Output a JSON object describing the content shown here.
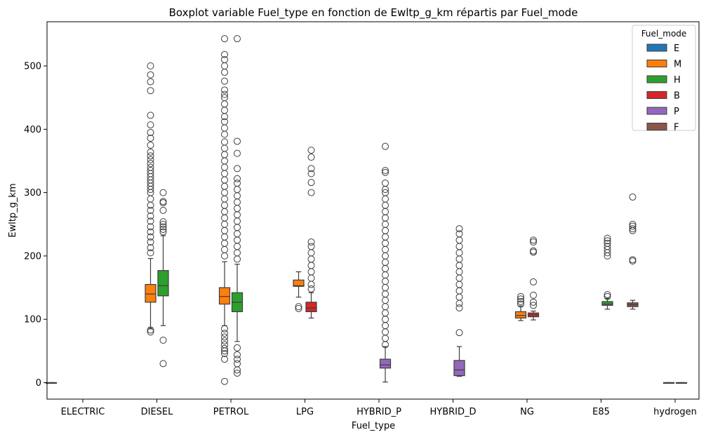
{
  "chart_data": {
    "type": "boxplot",
    "title": "Boxplot variable Fuel_type en fonction de Ewltp_g_km répartis par Fuel_mode",
    "xlabel": "Fuel_type",
    "ylabel": "Ewltp_g_km",
    "categories": [
      "ELECTRIC",
      "DIESEL",
      "PETROL",
      "LPG",
      "HYBRID_P",
      "HYBRID_D",
      "NG",
      "E85",
      "hydrogen"
    ],
    "ylim": [
      -25,
      570
    ],
    "yticks": [
      0,
      100,
      200,
      300,
      400,
      500
    ],
    "grid": false,
    "legend": {
      "title": "Fuel_mode",
      "placement": "top-right",
      "entries": [
        {
          "name": "E",
          "color": "#1f77b4"
        },
        {
          "name": "M",
          "color": "#ff7f0e"
        },
        {
          "name": "H",
          "color": "#2ca02c"
        },
        {
          "name": "B",
          "color": "#d62728"
        },
        {
          "name": "P",
          "color": "#9467bd"
        },
        {
          "name": "F",
          "color": "#8c564b"
        }
      ]
    },
    "hue_order": [
      "E",
      "M",
      "H",
      "B",
      "P",
      "F"
    ],
    "boxes": [
      {
        "category": "ELECTRIC",
        "mode": "E",
        "slot": -2.5,
        "q1": 0,
        "median": 0,
        "q3": 0,
        "whisker_low": 0,
        "whisker_high": 0,
        "outliers": []
      },
      {
        "category": "DIESEL",
        "mode": "M",
        "slot": -0.5,
        "q1": 127,
        "median": 140,
        "q3": 155,
        "whisker_low": 86,
        "whisker_high": 196,
        "outliers": [
          83,
          80,
          205,
          213,
          222,
          230,
          238,
          246,
          255,
          263,
          272,
          280,
          290,
          300,
          305,
          310,
          315,
          320,
          325,
          330,
          335,
          340,
          346,
          352,
          358,
          364,
          375,
          386,
          395,
          407,
          422,
          461,
          475,
          486,
          500
        ]
      },
      {
        "category": "DIESEL",
        "mode": "H",
        "slot": 0.5,
        "q1": 137,
        "median": 153,
        "q3": 177,
        "whisker_low": 90,
        "whisker_high": 232,
        "outliers": [
          67,
          30,
          238,
          242,
          246,
          250,
          254,
          272,
          284,
          286,
          300
        ]
      },
      {
        "category": "PETROL",
        "mode": "M",
        "slot": -0.5,
        "q1": 124,
        "median": 136,
        "q3": 150,
        "whisker_low": 90,
        "whisker_high": 191,
        "outliers": [
          85,
          78,
          72,
          66,
          60,
          54,
          50,
          46,
          37,
          2,
          200,
          210,
          220,
          230,
          240,
          250,
          260,
          270,
          280,
          290,
          300,
          310,
          320,
          330,
          340,
          350,
          360,
          370,
          380,
          392,
          402,
          412,
          420,
          430,
          440,
          450,
          455,
          462,
          476,
          490,
          500,
          510,
          518,
          543
        ]
      },
      {
        "category": "PETROL",
        "mode": "H",
        "slot": 0.5,
        "q1": 112,
        "median": 127,
        "q3": 142,
        "whisker_low": 65,
        "whisker_high": 187,
        "outliers": [
          55,
          44,
          37,
          30,
          20,
          15,
          195,
          205,
          215,
          225,
          235,
          245,
          255,
          265,
          275,
          285,
          295,
          305,
          315,
          322,
          338,
          362,
          381,
          543
        ]
      },
      {
        "category": "LPG",
        "mode": "M",
        "slot": -0.5,
        "q1": 152,
        "median": 153,
        "q3": 162,
        "whisker_low": 135,
        "whisker_high": 175,
        "outliers": [
          117,
          120
        ]
      },
      {
        "category": "LPG",
        "mode": "B",
        "slot": 0.5,
        "q1": 112,
        "median": 118,
        "q3": 127,
        "whisker_low": 102,
        "whisker_high": 142,
        "outliers": [
          148,
          155,
          165,
          175,
          185,
          195,
          205,
          215,
          222,
          300,
          316,
          330,
          338,
          356,
          367
        ]
      },
      {
        "category": "HYBRID_P",
        "mode": "P",
        "slot": 0.5,
        "q1": 23,
        "median": 28,
        "q3": 37,
        "whisker_low": 1,
        "whisker_high": 57,
        "outliers": [
          60,
          70,
          80,
          90,
          100,
          110,
          120,
          130,
          140,
          150,
          160,
          170,
          180,
          190,
          200,
          210,
          220,
          230,
          240,
          250,
          260,
          270,
          280,
          290,
          300,
          305,
          315,
          332,
          335,
          373
        ]
      },
      {
        "category": "HYBRID_D",
        "mode": "P",
        "slot": 0.5,
        "q1": 11,
        "median": 20,
        "q3": 35,
        "whisker_low": 10,
        "whisker_high": 57,
        "outliers": [
          79,
          118,
          125,
          135,
          145,
          155,
          165,
          175,
          185,
          195,
          205,
          215,
          225,
          235,
          243
        ]
      },
      {
        "category": "NG",
        "mode": "M",
        "slot": -0.5,
        "q1": 102,
        "median": 106,
        "q3": 112,
        "whisker_low": 98,
        "whisker_high": 121,
        "outliers": [
          124,
          128,
          132,
          136
        ]
      },
      {
        "category": "NG",
        "mode": "B",
        "slot": 0.5,
        "q1": 104,
        "median": 107,
        "q3": 110,
        "whisker_low": 99,
        "whisker_high": 113,
        "outliers": [
          122,
          127,
          138,
          159,
          206,
          208,
          222,
          225
        ]
      },
      {
        "category": "E85",
        "mode": "H",
        "slot": 0.5,
        "q1": 122,
        "median": 124,
        "q3": 128,
        "whisker_low": 116,
        "whisker_high": 133,
        "outliers": [
          136,
          139,
          200,
          205,
          210,
          215,
          220,
          224,
          228
        ]
      },
      {
        "category": "E85",
        "mode": "F",
        "slot": 2.5,
        "q1": 120,
        "median": 123,
        "q3": 126,
        "whisker_low": 116,
        "whisker_high": 130,
        "outliers": [
          192,
          194,
          240,
          243,
          247,
          250,
          293
        ]
      },
      {
        "category": "hydrogen",
        "mode": "H",
        "slot": -0.5,
        "q1": 0,
        "median": 0,
        "q3": 0,
        "whisker_low": 0,
        "whisker_high": 0,
        "outliers": []
      },
      {
        "category": "hydrogen",
        "mode": "F",
        "slot": 0.5,
        "q1": 0,
        "median": 0,
        "q3": 0,
        "whisker_low": 0,
        "whisker_high": 0,
        "outliers": []
      }
    ]
  }
}
